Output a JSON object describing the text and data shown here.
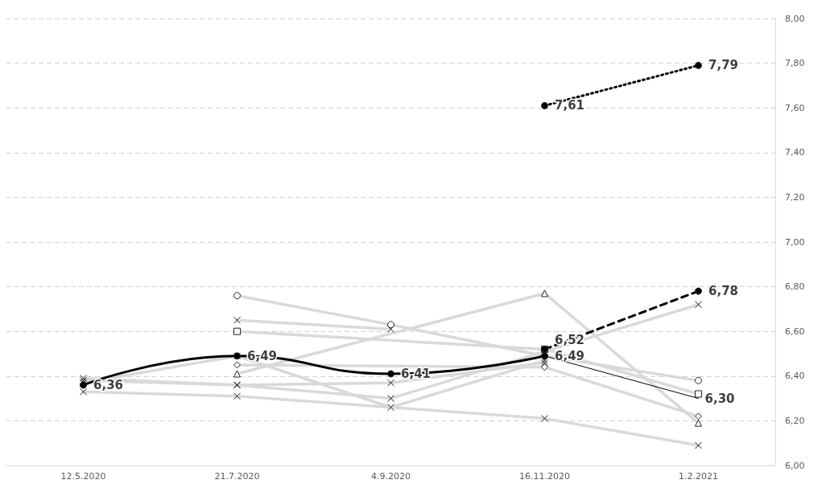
{
  "chart_data": {
    "type": "line",
    "categories": [
      "12.5.2020",
      "21.7.2020",
      "4.9.2020",
      "16.11.2020",
      "1.2.2021"
    ],
    "ylim": [
      6,
      8
    ],
    "yticks": [
      {
        "value": 6,
        "label": "6,00"
      },
      {
        "value": 6.2,
        "label": "6,20"
      },
      {
        "value": 6.4,
        "label": "6,40"
      },
      {
        "value": 6.6,
        "label": "6,60"
      },
      {
        "value": 6.8,
        "label": "6,80"
      },
      {
        "value": 7,
        "label": "7,00"
      },
      {
        "value": 7.2,
        "label": "7,20"
      },
      {
        "value": 7.4,
        "label": "7,40"
      },
      {
        "value": 7.6,
        "label": "7,60"
      },
      {
        "value": 7.8,
        "label": "7,80"
      },
      {
        "value": 8,
        "label": "8,00"
      }
    ],
    "grid": "y",
    "series": [
      {
        "color": "#d9d9d9",
        "marker": "circle",
        "values": [
          null,
          6.76,
          6.63,
          6.49,
          6.38
        ]
      },
      {
        "color": "#d9d9d9",
        "marker": "cross",
        "values": [
          null,
          6.65,
          6.61,
          null,
          null
        ]
      },
      {
        "color": "#d9d9d9",
        "marker": "square",
        "values": [
          null,
          6.6,
          null,
          6.52,
          6.32
        ]
      },
      {
        "color": "#d9d9d9",
        "marker": "cross",
        "values": [
          6.37,
          6.49,
          6.26,
          6.47,
          null
        ]
      },
      {
        "color": "#d9d9d9",
        "marker": "diamond",
        "values": [
          null,
          6.45,
          null,
          6.44,
          6.22
        ]
      },
      {
        "color": "#d9d9d9",
        "marker": "triangle",
        "values": [
          null,
          6.41,
          null,
          6.77,
          6.19
        ]
      },
      {
        "color": "#d9d9d9",
        "marker": "cross",
        "values": [
          6.38,
          6.36,
          6.37,
          6.46,
          null
        ]
      },
      {
        "color": "#d9d9d9",
        "marker": "cross",
        "values": [
          6.33,
          6.31,
          null,
          6.21,
          6.09
        ]
      },
      {
        "color": "#d9d9d9",
        "marker": "cross",
        "values": [
          6.39,
          6.36,
          6.3,
          null,
          6.72
        ]
      },
      {
        "color": "#000000",
        "marker": "circle",
        "line_style": "solid",
        "values": [
          6.36,
          6.49,
          6.41,
          6.49,
          null
        ],
        "value_labels": [
          "6,36",
          "6,49",
          "6,41",
          "6,49",
          null
        ]
      },
      {
        "color": "#000000",
        "marker": "none",
        "line_style": "solid",
        "values": [
          null,
          null,
          null,
          6.49,
          6.3
        ],
        "value_labels": [
          null,
          null,
          null,
          null,
          "6,30"
        ]
      },
      {
        "color": "#000000",
        "marker": "circle",
        "line_style": "dashed",
        "values": [
          null,
          null,
          null,
          6.52,
          6.78
        ],
        "value_labels": [
          null,
          null,
          null,
          "6,52",
          "6,78"
        ]
      },
      {
        "color": "#000000",
        "marker": "circle",
        "line_style": "dotted",
        "values": [
          null,
          null,
          null,
          7.61,
          7.79
        ],
        "value_labels": [
          null,
          null,
          null,
          "7,61",
          "7,79"
        ]
      }
    ]
  }
}
